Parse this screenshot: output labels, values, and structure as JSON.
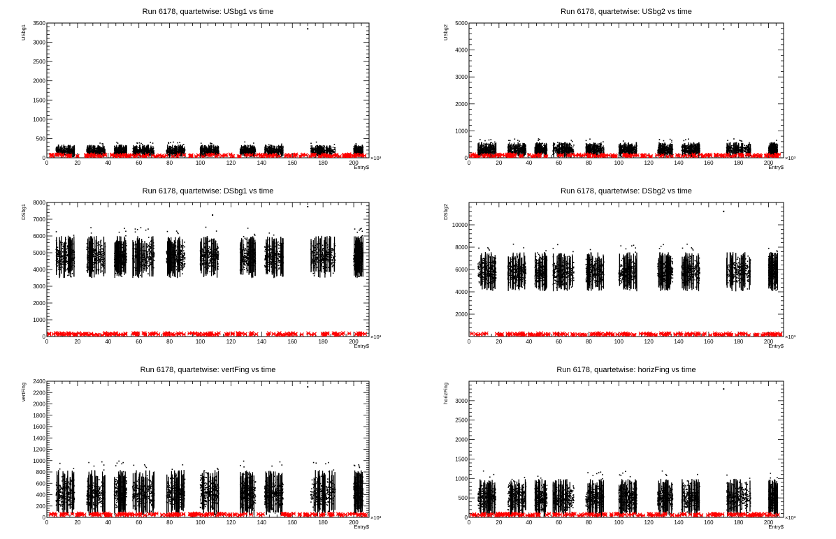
{
  "chart_data": [
    {
      "type": "scatter",
      "title": "Run 6178, quartetwise: USbg1 vs time",
      "xlabel": "Entry$",
      "ylabel": "USbg1",
      "x_multiplier": "×10³",
      "xlim": [
        0,
        210
      ],
      "ylim": [
        0,
        3500
      ],
      "xticks": [
        0,
        20,
        40,
        60,
        80,
        100,
        120,
        140,
        160,
        180,
        200
      ],
      "yticks": [
        0,
        500,
        1000,
        1500,
        2000,
        2500,
        3000,
        3500
      ],
      "segments": [
        [
          6,
          18
        ],
        [
          26,
          38
        ],
        [
          44,
          52
        ],
        [
          56,
          70
        ],
        [
          78,
          90
        ],
        [
          100,
          112
        ],
        [
          126,
          136
        ],
        [
          142,
          154
        ],
        [
          172,
          188
        ],
        [
          200,
          206
        ]
      ],
      "series": [
        {
          "color": "#000000",
          "marker": "dot",
          "band": [
            30,
            330
          ],
          "spikes": [
            [
              170,
              3350
            ]
          ]
        },
        {
          "color": "#ff0000",
          "marker": "star",
          "band": [
            0,
            30
          ]
        }
      ]
    },
    {
      "type": "scatter",
      "title": "Run 6178, quartetwise: USbg2 vs time",
      "xlabel": "Entry$",
      "ylabel": "USbg2",
      "x_multiplier": "×10³",
      "xlim": [
        0,
        210
      ],
      "ylim": [
        0,
        5000
      ],
      "xticks": [
        0,
        20,
        40,
        60,
        80,
        100,
        120,
        140,
        160,
        180,
        200
      ],
      "yticks": [
        0,
        1000,
        2000,
        3000,
        4000,
        5000
      ],
      "segments": [
        [
          6,
          18
        ],
        [
          26,
          38
        ],
        [
          44,
          52
        ],
        [
          56,
          70
        ],
        [
          78,
          90
        ],
        [
          100,
          112
        ],
        [
          126,
          136
        ],
        [
          142,
          154
        ],
        [
          172,
          188
        ],
        [
          200,
          206
        ]
      ],
      "series": [
        {
          "color": "#000000",
          "marker": "dot",
          "band": [
            40,
            560
          ],
          "spikes": [
            [
              170,
              4780
            ]
          ]
        },
        {
          "color": "#ff0000",
          "marker": "star",
          "band": [
            0,
            40
          ]
        }
      ]
    },
    {
      "type": "scatter",
      "title": "Run 6178, quartetwise: DSbg1 vs time",
      "xlabel": "Entry$",
      "ylabel": "DSbg1",
      "x_multiplier": "×10³",
      "xlim": [
        0,
        210
      ],
      "ylim": [
        0,
        8000
      ],
      "xticks": [
        0,
        20,
        40,
        60,
        80,
        100,
        120,
        140,
        160,
        180,
        200
      ],
      "yticks": [
        0,
        1000,
        2000,
        3000,
        4000,
        5000,
        6000,
        7000,
        8000
      ],
      "segments": [
        [
          6,
          18
        ],
        [
          26,
          38
        ],
        [
          44,
          52
        ],
        [
          56,
          70
        ],
        [
          78,
          90
        ],
        [
          100,
          112
        ],
        [
          126,
          136
        ],
        [
          142,
          154
        ],
        [
          172,
          188
        ],
        [
          200,
          206
        ]
      ],
      "series": [
        {
          "color": "#000000",
          "marker": "dot",
          "band": [
            3600,
            5900
          ],
          "spikes": [
            [
              170,
              7750
            ],
            [
              108,
              7250
            ]
          ]
        },
        {
          "color": "#ff0000",
          "marker": "star",
          "band": [
            0,
            80
          ]
        }
      ]
    },
    {
      "type": "scatter",
      "title": "Run 6178, quartetwise: DSbg2 vs time",
      "xlabel": "Entry$",
      "ylabel": "DSbg2",
      "x_multiplier": "×10³",
      "xlim": [
        0,
        210
      ],
      "ylim": [
        0,
        12000
      ],
      "xticks": [
        0,
        20,
        40,
        60,
        80,
        100,
        120,
        140,
        160,
        180,
        200
      ],
      "yticks": [
        2000,
        4000,
        6000,
        8000,
        10000
      ],
      "segments": [
        [
          6,
          18
        ],
        [
          26,
          38
        ],
        [
          44,
          52
        ],
        [
          56,
          70
        ],
        [
          78,
          90
        ],
        [
          100,
          112
        ],
        [
          126,
          136
        ],
        [
          142,
          154
        ],
        [
          172,
          188
        ],
        [
          200,
          206
        ]
      ],
      "series": [
        {
          "color": "#000000",
          "marker": "dot",
          "band": [
            4200,
            7400
          ],
          "spikes": [
            [
              170,
              11200
            ]
          ]
        },
        {
          "color": "#ff0000",
          "marker": "star",
          "band": [
            0,
            100
          ]
        }
      ]
    },
    {
      "type": "scatter",
      "title": "Run 6178, quartetwise: vertFing vs time",
      "xlabel": "Entry$",
      "ylabel": "vertFing",
      "x_multiplier": "×10³",
      "xlim": [
        0,
        210
      ],
      "ylim": [
        0,
        2400
      ],
      "xticks": [
        0,
        20,
        40,
        60,
        80,
        100,
        120,
        140,
        160,
        180,
        200
      ],
      "yticks": [
        0,
        200,
        400,
        600,
        800,
        1000,
        1200,
        1400,
        1600,
        1800,
        2000,
        2200,
        2400
      ],
      "segments": [
        [
          6,
          18
        ],
        [
          26,
          38
        ],
        [
          44,
          52
        ],
        [
          56,
          70
        ],
        [
          78,
          90
        ],
        [
          100,
          112
        ],
        [
          126,
          136
        ],
        [
          142,
          154
        ],
        [
          172,
          188
        ],
        [
          200,
          206
        ]
      ],
      "series": [
        {
          "color": "#000000",
          "marker": "dot",
          "band": [
            60,
            800
          ],
          "spikes": [
            [
              170,
              2300
            ]
          ]
        },
        {
          "color": "#ff0000",
          "marker": "star",
          "band": [
            0,
            40
          ]
        }
      ]
    },
    {
      "type": "scatter",
      "title": "Run 6178, quartetwise: horizFing vs time",
      "xlabel": "Entry$",
      "ylabel": "horizFing",
      "x_multiplier": "×10³",
      "xlim": [
        0,
        210
      ],
      "ylim": [
        0,
        3500
      ],
      "xticks": [
        0,
        20,
        40,
        60,
        80,
        100,
        120,
        140,
        160,
        180,
        200
      ],
      "yticks": [
        0,
        500,
        1000,
        1500,
        2000,
        2500,
        3000
      ],
      "segments": [
        [
          6,
          18
        ],
        [
          26,
          38
        ],
        [
          44,
          52
        ],
        [
          56,
          70
        ],
        [
          78,
          90
        ],
        [
          100,
          112
        ],
        [
          126,
          136
        ],
        [
          142,
          154
        ],
        [
          172,
          188
        ],
        [
          200,
          206
        ]
      ],
      "series": [
        {
          "color": "#000000",
          "marker": "dot",
          "band": [
            60,
            950
          ],
          "spikes": [
            [
              170,
              3300
            ]
          ]
        },
        {
          "color": "#ff0000",
          "marker": "star",
          "band": [
            0,
            50
          ]
        }
      ]
    }
  ]
}
